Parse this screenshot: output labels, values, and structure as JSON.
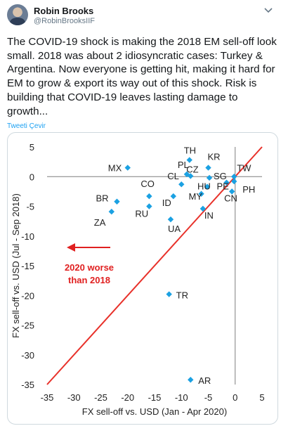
{
  "tweet": {
    "display_name": "Robin Brooks",
    "handle": "@RobinBrooksIIF",
    "text": "The COVID-19 shock is making the 2018 EM sell-off look small. 2018 was about 2 idiosyncratic cases: Turkey & Argentina. Now everyone is getting hit, making it hard for EM to grow & export its way out of this shock. Risk is building that COVID-19 leaves lasting damage to growth...",
    "translate_label": "Tweeti Çevir",
    "avatar_icon": "profile-photo",
    "menu_icon": "chevron-down-icon"
  },
  "colors": {
    "point": "#1ba1e2",
    "line": "#e8312a",
    "annotation": "#e02020"
  },
  "chart_data": {
    "type": "scatter",
    "xlabel": "FX sell-off vs. USD (Jan - Apr 2020)",
    "ylabel": "FX sell-off vs. USD (Jul - Sep 2018)",
    "xlim": [
      -35,
      5
    ],
    "ylim": [
      -35,
      5
    ],
    "xticks": [
      "-35",
      "-30",
      "-25",
      "-20",
      "-15",
      "-10",
      "-5",
      "0",
      "5"
    ],
    "yticks": [
      "5",
      "0",
      "-5",
      "-10",
      "-15",
      "-20",
      "-25",
      "-30",
      "-35"
    ],
    "xtick_values": [
      -35,
      -30,
      -25,
      -20,
      -15,
      -10,
      -5,
      0,
      5
    ],
    "ytick_values": [
      5,
      0,
      -5,
      -10,
      -15,
      -20,
      -25,
      -30,
      -35
    ],
    "grid": false,
    "diagonal": [
      [
        -35,
        -35
      ],
      [
        5,
        5
      ]
    ],
    "annotation": {
      "line1": "2020 worse",
      "line2": "than 2018",
      "arrow": "left"
    },
    "points": [
      {
        "label": "TH",
        "x": -8.5,
        "y": 2.8
      },
      {
        "label": "PL",
        "x": -9,
        "y": 0.4
      },
      {
        "label": "CZ",
        "x": -8.3,
        "y": 0.1
      },
      {
        "label": "KR",
        "x": -5,
        "y": 1.5
      },
      {
        "label": "SG",
        "x": -4.8,
        "y": -0.2
      },
      {
        "label": "TW",
        "x": -0.2,
        "y": 0
      },
      {
        "label": "PH",
        "x": -0.2,
        "y": -0.8
      },
      {
        "label": "PE",
        "x": -1.6,
        "y": -1
      },
      {
        "label": "CN",
        "x": -0.6,
        "y": -2.5
      },
      {
        "label": "MX",
        "x": -20,
        "y": 1.5
      },
      {
        "label": "CO",
        "x": -16,
        "y": -3.3
      },
      {
        "label": "CL",
        "x": -10,
        "y": -1.3
      },
      {
        "label": "HU",
        "x": -5.2,
        "y": -1.7
      },
      {
        "label": "MY",
        "x": -6.3,
        "y": -2.9
      },
      {
        "label": "ID",
        "x": -11.5,
        "y": -3.3
      },
      {
        "label": "IN",
        "x": -6,
        "y": -5.4
      },
      {
        "label": "BR",
        "x": -22,
        "y": -4.2
      },
      {
        "label": "RU",
        "x": -16,
        "y": -5
      },
      {
        "label": "ZA",
        "x": -23,
        "y": -5.9
      },
      {
        "label": "UA",
        "x": -12,
        "y": -7.2
      },
      {
        "label": "TR",
        "x": -12.3,
        "y": -19.8
      },
      {
        "label": "AR",
        "x": -8.3,
        "y": -34.2
      }
    ]
  }
}
